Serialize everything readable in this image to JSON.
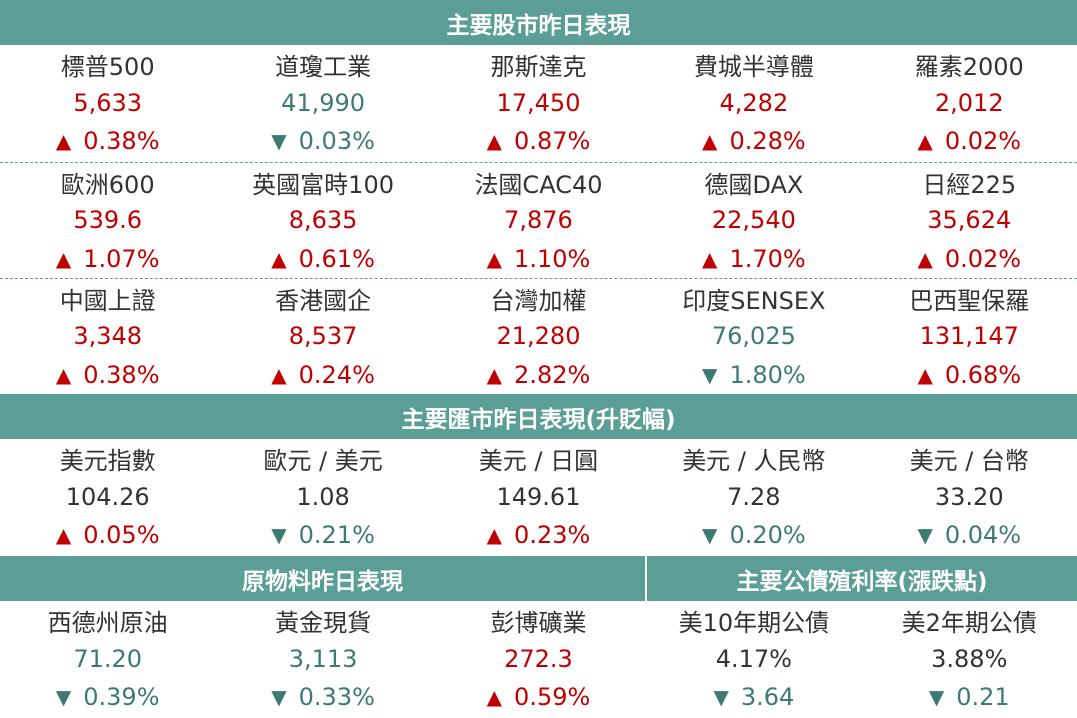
{
  "equity": {
    "title": "主要股市昨日表現",
    "rows": [
      [
        {
          "name": "標普500",
          "value": "5,633",
          "dir": "up",
          "arrow": "▲",
          "change": "0.38%"
        },
        {
          "name": "道瓊工業",
          "value": "41,990",
          "dir": "down",
          "arrow": "▼",
          "change": "0.03%"
        },
        {
          "name": "那斯達克",
          "value": "17,450",
          "dir": "up",
          "arrow": "▲",
          "change": "0.87%"
        },
        {
          "name": "費城半導體",
          "value": "4,282",
          "dir": "up",
          "arrow": "▲",
          "change": "0.28%"
        },
        {
          "name": "羅素2000",
          "value": "2,012",
          "dir": "up",
          "arrow": "▲",
          "change": "0.02%"
        }
      ],
      [
        {
          "name": "歐洲600",
          "value": "539.6",
          "dir": "up",
          "arrow": "▲",
          "change": "1.07%"
        },
        {
          "name": "英國富時100",
          "value": "8,635",
          "dir": "up",
          "arrow": "▲",
          "change": "0.61%"
        },
        {
          "name": "法國CAC40",
          "value": "7,876",
          "dir": "up",
          "arrow": "▲",
          "change": "1.10%"
        },
        {
          "name": "德國DAX",
          "value": "22,540",
          "dir": "up",
          "arrow": "▲",
          "change": "1.70%"
        },
        {
          "name": "日經225",
          "value": "35,624",
          "dir": "up",
          "arrow": "▲",
          "change": "0.02%"
        }
      ],
      [
        {
          "name": "中國上證",
          "value": "3,348",
          "dir": "up",
          "arrow": "▲",
          "change": "0.38%"
        },
        {
          "name": "香港國企",
          "value": "8,537",
          "dir": "up",
          "arrow": "▲",
          "change": "0.24%"
        },
        {
          "name": "台灣加權",
          "value": "21,280",
          "dir": "up",
          "arrow": "▲",
          "change": "2.82%"
        },
        {
          "name": "印度SENSEX",
          "value": "76,025",
          "dir": "down",
          "arrow": "▼",
          "change": "1.80%"
        },
        {
          "name": "巴西聖保羅",
          "value": "131,147",
          "dir": "up",
          "arrow": "▲",
          "change": "0.68%"
        }
      ]
    ]
  },
  "fx": {
    "title": "主要匯市昨日表現(升貶幅)",
    "items": [
      {
        "name": "美元指數",
        "value": "104.26",
        "dir": "up",
        "arrow": "▲",
        "change": "0.05%"
      },
      {
        "name": "歐元 / 美元",
        "value": "1.08",
        "dir": "down",
        "arrow": "▼",
        "change": "0.21%"
      },
      {
        "name": "美元 / 日圓",
        "value": "149.61",
        "dir": "up",
        "arrow": "▲",
        "change": "0.23%"
      },
      {
        "name": "美元 / 人民幣",
        "value": "7.28",
        "dir": "down",
        "arrow": "▼",
        "change": "0.20%"
      },
      {
        "name": "美元 / 台幣",
        "value": "33.20",
        "dir": "down",
        "arrow": "▼",
        "change": "0.04%"
      }
    ]
  },
  "commodities": {
    "title": "原物料昨日表現",
    "items": [
      {
        "name": "西德州原油",
        "value": "71.20",
        "value_color": "down",
        "dir": "down",
        "arrow": "▼",
        "change": "0.39%"
      },
      {
        "name": "黃金現貨",
        "value": "3,113",
        "value_color": "down",
        "dir": "down",
        "arrow": "▼",
        "change": "0.33%"
      },
      {
        "name": "彭博礦業",
        "value": "272.3",
        "value_color": "up",
        "dir": "up",
        "arrow": "▲",
        "change": "0.59%"
      }
    ]
  },
  "bonds": {
    "title": "主要公債殖利率(漲跌點)",
    "items": [
      {
        "name": "美10年期公債",
        "value": "4.17%",
        "value_color": "flat",
        "dir": "down",
        "arrow": "▼",
        "change": "3.64"
      },
      {
        "name": "美2年期公債",
        "value": "3.88%",
        "value_color": "flat",
        "dir": "down",
        "arrow": "▼",
        "change": "0.21"
      }
    ]
  },
  "colors": {
    "header_bg": "#5a9e96",
    "up": "#c00000",
    "down": "#3d7a72",
    "neutral": "#333333"
  }
}
